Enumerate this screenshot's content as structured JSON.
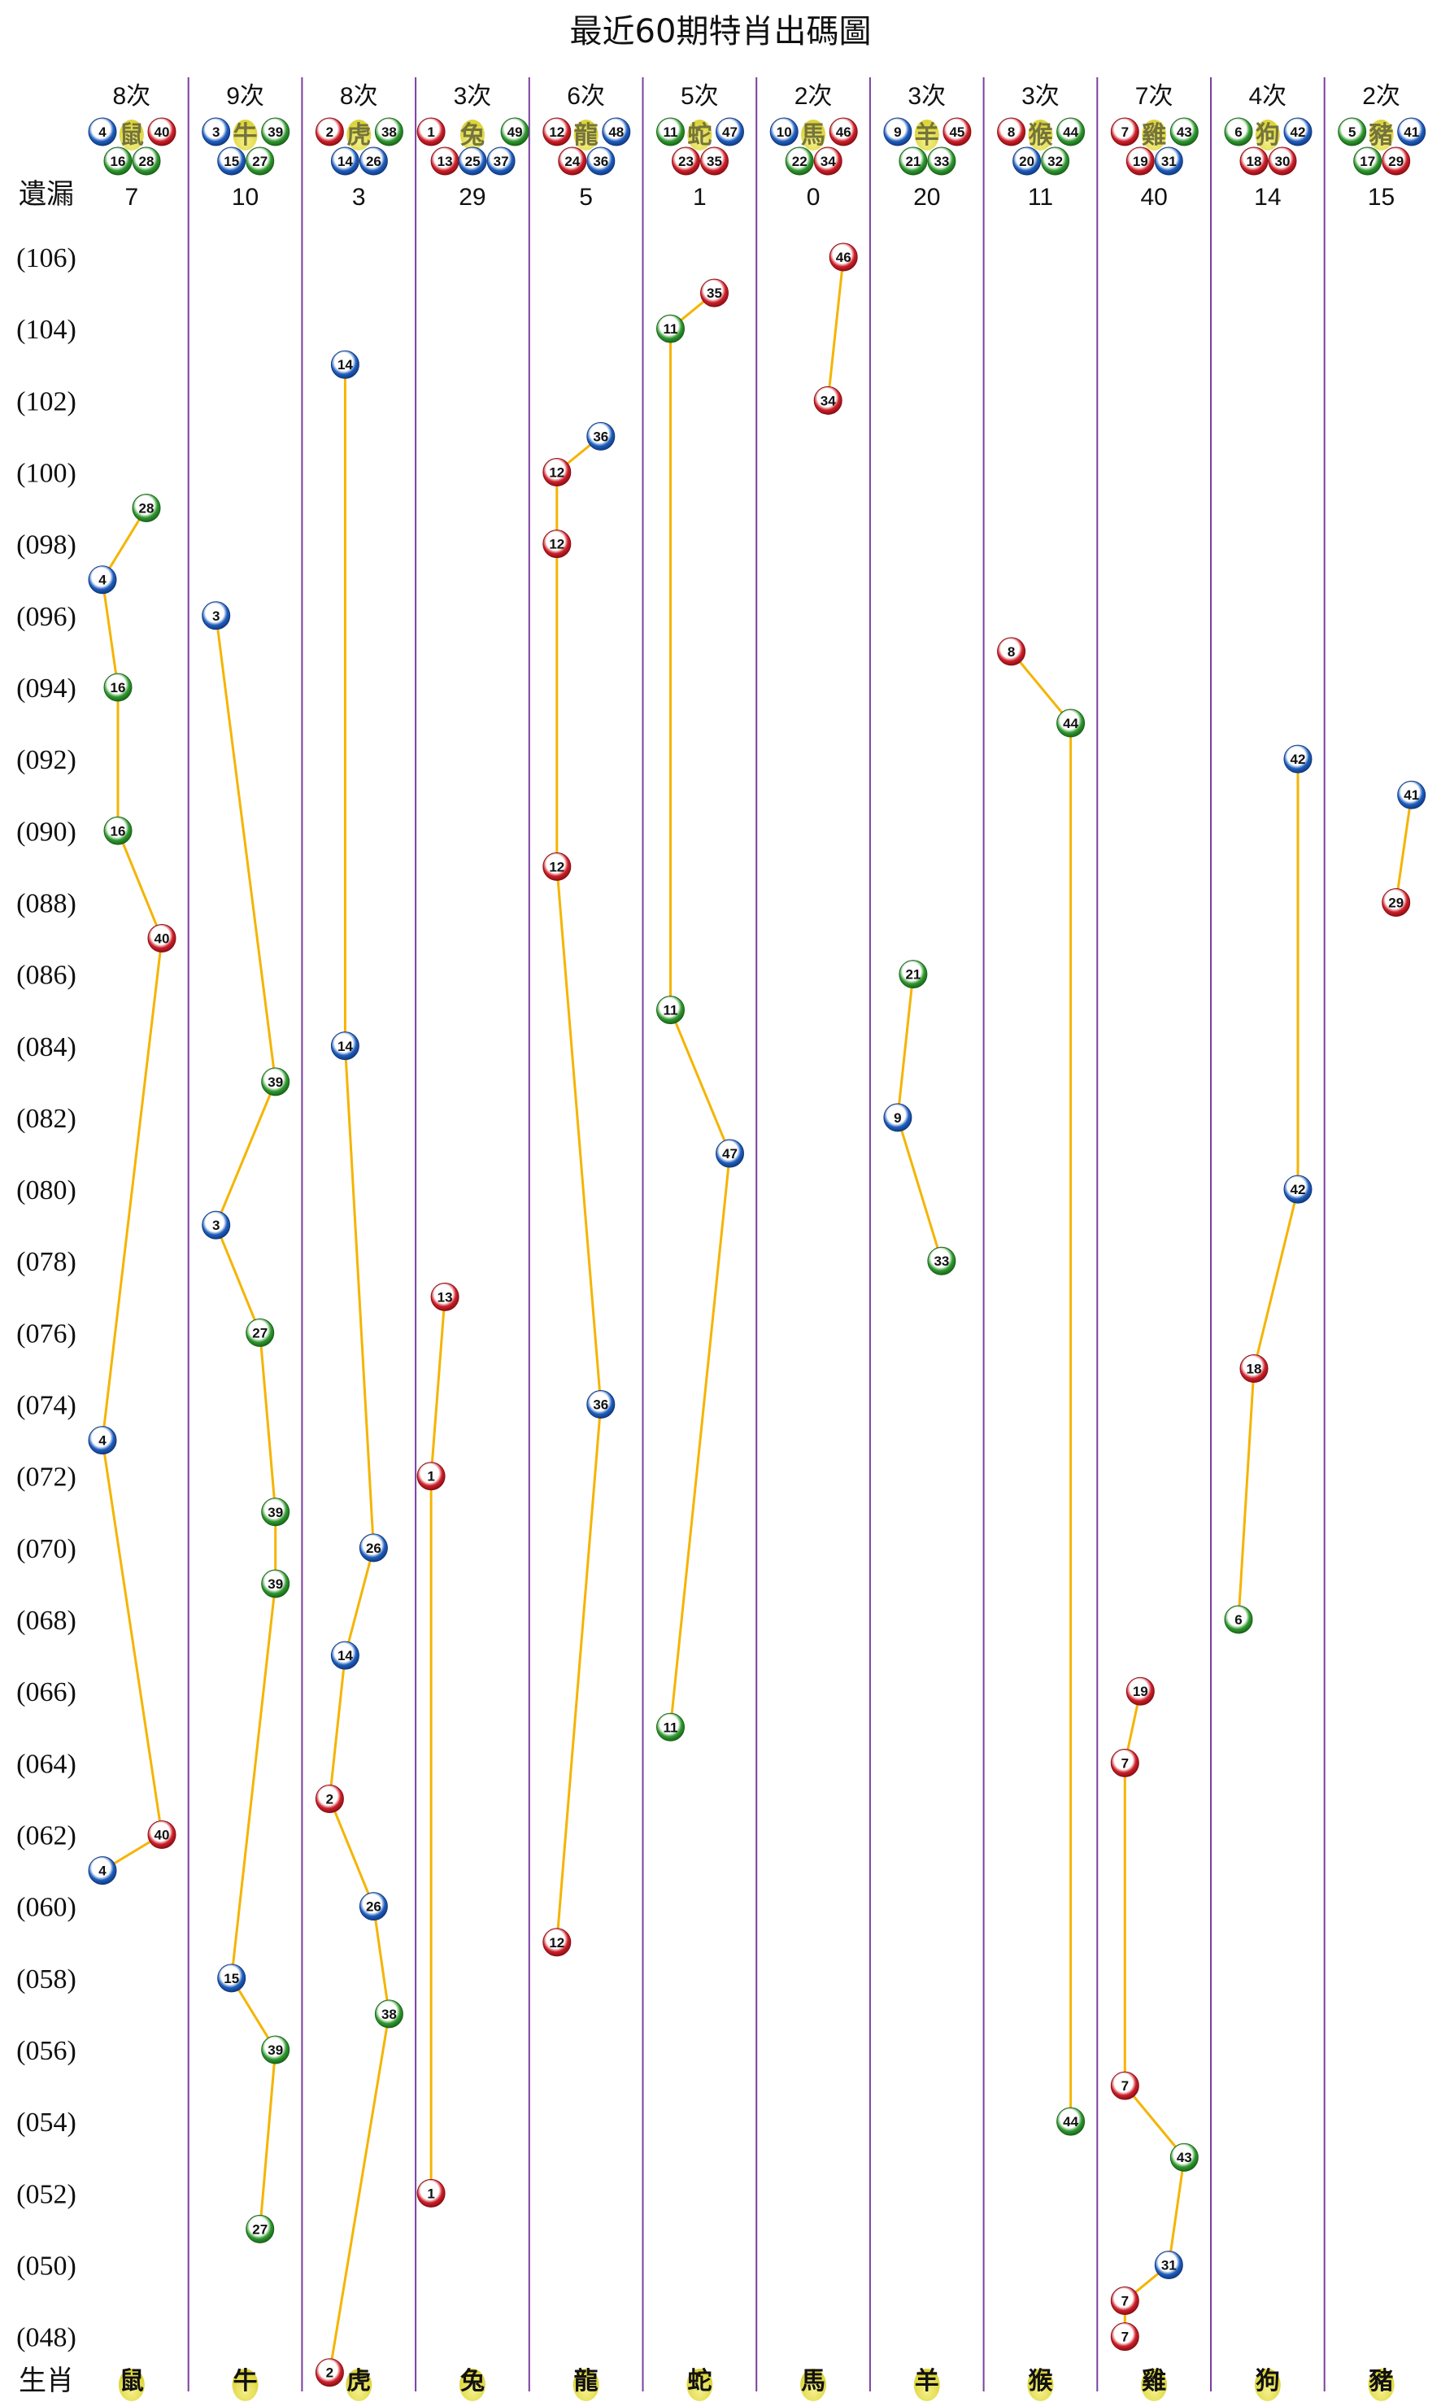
{
  "title": "最近60期特肖出碼圖",
  "missing_label": "遺漏",
  "footer_label": "生肖",
  "colors": {
    "red": "#d0202a",
    "blue": "#1f5fc0",
    "green": "#2f9a2f",
    "line": "#f5b400",
    "divider": "#7a3fa0",
    "zodiac_bg": "#dcd43a"
  },
  "ball_colors": {
    "red": [
      1,
      2,
      7,
      8,
      12,
      13,
      18,
      19,
      23,
      24,
      29,
      30,
      34,
      35,
      40,
      45,
      46
    ],
    "blue": [
      3,
      4,
      9,
      10,
      14,
      15,
      20,
      25,
      26,
      31,
      36,
      37,
      41,
      42,
      47,
      48
    ],
    "green": [
      5,
      6,
      11,
      16,
      17,
      21,
      22,
      27,
      28,
      32,
      33,
      38,
      39,
      43,
      44,
      49
    ]
  },
  "period_labels": [
    "(106)",
    "(104)",
    "(102)",
    "(100)",
    "(098)",
    "(096)",
    "(094)",
    "(092)",
    "(090)",
    "(088)",
    "(086)",
    "(084)",
    "(082)",
    "(080)",
    "(078)",
    "(076)",
    "(074)",
    "(072)",
    "(070)",
    "(068)",
    "(066)",
    "(064)",
    "(062)",
    "(060)",
    "(058)",
    "(056)",
    "(054)",
    "(052)",
    "(050)",
    "(048)"
  ],
  "chart_data": {
    "type": "scatter",
    "title": "最近60期特肖出碼圖",
    "x_categories": [
      "鼠",
      "牛",
      "虎",
      "兔",
      "龍",
      "蛇",
      "馬",
      "羊",
      "猴",
      "雞",
      "狗",
      "豬"
    ],
    "y_range": [
      47,
      106
    ],
    "y_label": "period",
    "series": [
      {
        "zodiac": "鼠",
        "count_label": "8次",
        "numbers": [
          4,
          16,
          28,
          40
        ],
        "missing": "7",
        "points": [
          {
            "period": 99,
            "number": 28
          },
          {
            "period": 97,
            "number": 4
          },
          {
            "period": 94,
            "number": 16
          },
          {
            "period": 90,
            "number": 16
          },
          {
            "period": 87,
            "number": 40
          },
          {
            "period": 73,
            "number": 4
          },
          {
            "period": 62,
            "number": 40
          },
          {
            "period": 61,
            "number": 4
          }
        ]
      },
      {
        "zodiac": "牛",
        "count_label": "9次",
        "numbers": [
          3,
          15,
          27,
          39
        ],
        "missing": "10",
        "points": [
          {
            "period": 96,
            "number": 3
          },
          {
            "period": 83,
            "number": 39
          },
          {
            "period": 79,
            "number": 3
          },
          {
            "period": 76,
            "number": 27
          },
          {
            "period": 71,
            "number": 39
          },
          {
            "period": 69,
            "number": 39
          },
          {
            "period": 58,
            "number": 15
          },
          {
            "period": 56,
            "number": 39
          },
          {
            "period": 51,
            "number": 27
          }
        ]
      },
      {
        "zodiac": "虎",
        "count_label": "8次",
        "numbers": [
          2,
          14,
          26,
          38
        ],
        "missing": "3",
        "points": [
          {
            "period": 103,
            "number": 14
          },
          {
            "period": 84,
            "number": 14
          },
          {
            "period": 70,
            "number": 26
          },
          {
            "period": 67,
            "number": 14
          },
          {
            "period": 63,
            "number": 2
          },
          {
            "period": 60,
            "number": 26
          },
          {
            "period": 57,
            "number": 38
          },
          {
            "period": 47,
            "number": 2
          }
        ]
      },
      {
        "zodiac": "兔",
        "count_label": "3次",
        "numbers": [
          1,
          13,
          25,
          37,
          49
        ],
        "missing": "29",
        "points": [
          {
            "period": 77,
            "number": 13
          },
          {
            "period": 72,
            "number": 1
          },
          {
            "period": 52,
            "number": 1
          }
        ]
      },
      {
        "zodiac": "龍",
        "count_label": "6次",
        "numbers": [
          12,
          24,
          36,
          48
        ],
        "missing": "5",
        "points": [
          {
            "period": 101,
            "number": 36
          },
          {
            "period": 100,
            "number": 12
          },
          {
            "period": 98,
            "number": 12
          },
          {
            "period": 89,
            "number": 12
          },
          {
            "period": 74,
            "number": 36
          },
          {
            "period": 59,
            "number": 12
          }
        ]
      },
      {
        "zodiac": "蛇",
        "count_label": "5次",
        "numbers": [
          11,
          23,
          35,
          47
        ],
        "missing": "1",
        "points": [
          {
            "period": 105,
            "number": 35
          },
          {
            "period": 104,
            "number": 11
          },
          {
            "period": 85,
            "number": 11
          },
          {
            "period": 81,
            "number": 47
          },
          {
            "period": 65,
            "number": 11
          }
        ]
      },
      {
        "zodiac": "馬",
        "count_label": "2次",
        "numbers": [
          10,
          22,
          34,
          46
        ],
        "missing": "0",
        "points": [
          {
            "period": 106,
            "number": 46
          },
          {
            "period": 102,
            "number": 34
          }
        ]
      },
      {
        "zodiac": "羊",
        "count_label": "3次",
        "numbers": [
          9,
          21,
          33,
          45
        ],
        "missing": "20",
        "points": [
          {
            "period": 86,
            "number": 21
          },
          {
            "period": 82,
            "number": 9
          },
          {
            "period": 78,
            "number": 33
          }
        ]
      },
      {
        "zodiac": "猴",
        "count_label": "3次",
        "numbers": [
          8,
          20,
          32,
          44
        ],
        "missing": "11",
        "points": [
          {
            "period": 95,
            "number": 8
          },
          {
            "period": 93,
            "number": 44
          },
          {
            "period": 54,
            "number": 44
          }
        ]
      },
      {
        "zodiac": "雞",
        "count_label": "7次",
        "numbers": [
          7,
          19,
          31,
          43
        ],
        "missing": "40",
        "points": [
          {
            "period": 66,
            "number": 19
          },
          {
            "period": 64,
            "number": 7
          },
          {
            "period": 55,
            "number": 7
          },
          {
            "period": 53,
            "number": 43
          },
          {
            "period": 50,
            "number": 31
          },
          {
            "period": 49,
            "number": 7
          },
          {
            "period": 48,
            "number": 7
          }
        ]
      },
      {
        "zodiac": "狗",
        "count_label": "4次",
        "numbers": [
          6,
          18,
          30,
          42
        ],
        "missing": "14",
        "points": [
          {
            "period": 92,
            "number": 42
          },
          {
            "period": 80,
            "number": 42
          },
          {
            "period": 75,
            "number": 18
          },
          {
            "period": 68,
            "number": 6
          }
        ]
      },
      {
        "zodiac": "豬",
        "count_label": "2次",
        "numbers": [
          5,
          17,
          29,
          41
        ],
        "missing": "15",
        "points": [
          {
            "period": 91,
            "number": 41
          },
          {
            "period": 88,
            "number": 29
          }
        ]
      }
    ]
  }
}
